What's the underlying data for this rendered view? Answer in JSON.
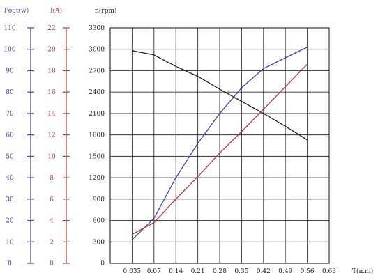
{
  "chart_data": {
    "type": "line",
    "title": "",
    "colors": {
      "pout": "#3b3fb0",
      "current": "#b23a3a",
      "speed": "#222222",
      "grid": "#333333"
    },
    "axes": {
      "pout": {
        "label": "Pout(w)",
        "min": 0,
        "max": 110,
        "ticks": [
          0,
          10,
          20,
          30,
          40,
          50,
          60,
          70,
          80,
          90,
          100,
          110
        ]
      },
      "current": {
        "label": "I(A)",
        "min": 0,
        "max": 22,
        "ticks": [
          0,
          2,
          4,
          6,
          8,
          10,
          12,
          14,
          16,
          18,
          20,
          22
        ]
      },
      "speed": {
        "label": "n(rpm)",
        "min": 0,
        "max": 3300,
        "ticks": [
          0,
          300,
          600,
          900,
          1200,
          1500,
          1800,
          2100,
          2400,
          2700,
          3000,
          3300
        ]
      },
      "torque": {
        "label": "T(n.m)",
        "tick_labels": [
          "0.035",
          "0.07",
          "0.14",
          "0.21",
          "0.28",
          "0.35",
          "0.42",
          "0.49",
          "0.56",
          "0.63"
        ]
      }
    },
    "grid": true,
    "series": [
      {
        "axis": "speed",
        "x": [
          0.035,
          0.07,
          0.14,
          0.21,
          0.28,
          0.35,
          0.42,
          0.49,
          0.56
        ],
        "values": [
          2980,
          2920,
          2760,
          2620,
          2440,
          2270,
          2100,
          1920,
          1730
        ]
      },
      {
        "axis": "pout",
        "x": [
          0.035,
          0.07,
          0.14,
          0.21,
          0.28,
          0.35,
          0.42,
          0.49,
          0.56
        ],
        "values": [
          11,
          21,
          40,
          56,
          70,
          82,
          91,
          96,
          101
        ]
      },
      {
        "axis": "current",
        "x": [
          0.035,
          0.07,
          0.14,
          0.21,
          0.28,
          0.35,
          0.42,
          0.49,
          0.56
        ],
        "values": [
          2.7,
          3.8,
          6.0,
          8.1,
          10.3,
          12.3,
          14.4,
          16.5,
          18.6
        ]
      }
    ]
  }
}
